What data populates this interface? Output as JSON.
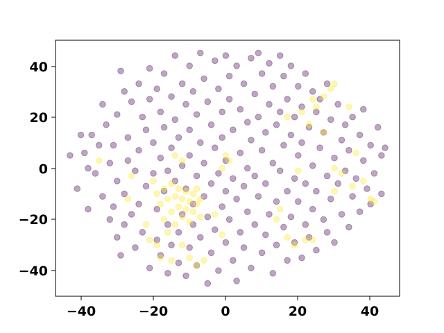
{
  "chart_data": {
    "type": "scatter",
    "title": "",
    "xlabel": "",
    "ylabel": "",
    "xlim": [
      -47,
      48
    ],
    "ylim": [
      -50,
      50
    ],
    "xticks": [
      -40,
      -20,
      0,
      20,
      40
    ],
    "yticks": [
      -40,
      -20,
      0,
      20,
      40
    ],
    "xtick_labels": [
      "−40",
      "−20",
      "0",
      "20",
      "40"
    ],
    "ytick_labels": [
      "−40",
      "−20",
      "0",
      "20",
      "40"
    ],
    "grid": false,
    "marker_alpha": 0.35,
    "series": [
      {
        "color": "#440154",
        "points": [
          [
            -43,
            5
          ],
          [
            -41,
            -8
          ],
          [
            -40,
            13
          ],
          [
            -39,
            6
          ],
          [
            -38,
            -16
          ],
          [
            -38,
            0
          ],
          [
            -37,
            13
          ],
          [
            -36,
            -2
          ],
          [
            -35,
            9
          ],
          [
            -34,
            25
          ],
          [
            -34,
            -11
          ],
          [
            -33,
            17
          ],
          [
            -32,
            -20
          ],
          [
            -32,
            2
          ],
          [
            -31,
            -15
          ],
          [
            -31,
            9
          ],
          [
            -30,
            -27
          ],
          [
            -30,
            21
          ],
          [
            -30,
            -5
          ],
          [
            -29,
            38
          ],
          [
            -29,
            -34
          ],
          [
            -28,
            30
          ],
          [
            -28,
            -22
          ],
          [
            -28,
            -10
          ],
          [
            -27,
            12
          ],
          [
            -27,
            3
          ],
          [
            -26,
            -18
          ],
          [
            -26,
            26
          ],
          [
            -25,
            -31
          ],
          [
            -25,
            -1
          ],
          [
            -24,
            33
          ],
          [
            -24,
            -14
          ],
          [
            -24,
            7
          ],
          [
            -23,
            20
          ],
          [
            -23,
            -25
          ],
          [
            -22,
            -7
          ],
          [
            -22,
            15
          ],
          [
            -21,
            39
          ],
          [
            -21,
            -39
          ],
          [
            -21,
            27
          ],
          [
            -20,
            -2
          ],
          [
            -20,
            10
          ],
          [
            -19,
            -28
          ],
          [
            -19,
            -16
          ],
          [
            -19,
            31
          ],
          [
            -18,
            4
          ],
          [
            -18,
            22
          ],
          [
            -18,
            -34
          ],
          [
            -17,
            -9
          ],
          [
            -17,
            16
          ],
          [
            -17,
            37
          ],
          [
            -16,
            -41
          ],
          [
            -16,
            -22
          ],
          [
            -16,
            -1
          ],
          [
            -15,
            28
          ],
          [
            -15,
            8
          ],
          [
            -15,
            -30
          ],
          [
            -14,
            44
          ],
          [
            -14,
            19
          ],
          [
            -14,
            -5
          ],
          [
            -13,
            -37
          ],
          [
            -13,
            12
          ],
          [
            -13,
            -25
          ],
          [
            -12,
            33
          ],
          [
            -12,
            1
          ],
          [
            -12,
            -18
          ],
          [
            -11,
            25
          ],
          [
            -11,
            -42
          ],
          [
            -11,
            -8
          ],
          [
            -10,
            40
          ],
          [
            -10,
            15
          ],
          [
            -10,
            -31
          ],
          [
            -10,
            5
          ],
          [
            -9,
            -22
          ],
          [
            -9,
            30
          ],
          [
            -9,
            -14
          ],
          [
            -8,
            21
          ],
          [
            -8,
            -3
          ],
          [
            -8,
            -38
          ],
          [
            -7,
            45
          ],
          [
            -7,
            10
          ],
          [
            -7,
            -27
          ],
          [
            -6,
            35
          ],
          [
            -6,
            -11
          ],
          [
            -6,
            2
          ],
          [
            -5,
            26
          ],
          [
            -5,
            -45
          ],
          [
            -5,
            -19
          ],
          [
            -4,
            17
          ],
          [
            -4,
            -33
          ],
          [
            -4,
            -6
          ],
          [
            -3,
            42
          ],
          [
            -3,
            8
          ],
          [
            -3,
            -24
          ],
          [
            -2,
            31
          ],
          [
            -2,
            -2
          ],
          [
            -2,
            -40
          ],
          [
            -1,
            22
          ],
          [
            -1,
            -15
          ],
          [
            -1,
            12
          ],
          [
            0,
            44
          ],
          [
            0,
            -29
          ],
          [
            0,
            -9
          ],
          [
            0,
            3
          ],
          [
            1,
            36
          ],
          [
            1,
            -20
          ],
          [
            1,
            27
          ],
          [
            2,
            -36
          ],
          [
            2,
            -4
          ],
          [
            2,
            15
          ],
          [
            3,
            40
          ],
          [
            3,
            -12
          ],
          [
            3,
            -44
          ],
          [
            4,
            23
          ],
          [
            4,
            -25
          ],
          [
            4,
            6
          ],
          [
            5,
            33
          ],
          [
            5,
            -7
          ],
          [
            5,
            -31
          ],
          [
            6,
            18
          ],
          [
            6,
            -17
          ],
          [
            6,
            0
          ],
          [
            7,
            43
          ],
          [
            7,
            -39
          ],
          [
            7,
            11
          ],
          [
            8,
            29
          ],
          [
            8,
            -22
          ],
          [
            8,
            -3
          ],
          [
            9,
            45
          ],
          [
            9,
            20
          ],
          [
            9,
            -11
          ],
          [
            10,
            -33
          ],
          [
            10,
            7
          ],
          [
            10,
            37
          ],
          [
            11,
            -26
          ],
          [
            11,
            14
          ],
          [
            11,
            -6
          ],
          [
            12,
            41
          ],
          [
            12,
            -18
          ],
          [
            12,
            25
          ],
          [
            13,
            -41
          ],
          [
            13,
            2
          ],
          [
            13,
            32
          ],
          [
            14,
            -13
          ],
          [
            14,
            17
          ],
          [
            14,
            -30
          ],
          [
            15,
            44
          ],
          [
            15,
            -1
          ],
          [
            15,
            22
          ],
          [
            16,
            -23
          ],
          [
            16,
            9
          ],
          [
            16,
            36
          ],
          [
            17,
            -36
          ],
          [
            17,
            -9
          ],
          [
            17,
            27
          ],
          [
            18,
            13
          ],
          [
            18,
            -19
          ],
          [
            18,
            40
          ],
          [
            19,
            -4
          ],
          [
            19,
            20
          ],
          [
            19,
            -29
          ],
          [
            20,
            32
          ],
          [
            20,
            5
          ],
          [
            20,
            -13
          ],
          [
            21,
            24
          ],
          [
            21,
            -35
          ],
          [
            21,
            10
          ],
          [
            22,
            -22
          ],
          [
            22,
            37
          ],
          [
            22,
            -6
          ],
          [
            23,
            16
          ],
          [
            23,
            -27
          ],
          [
            24,
            30
          ],
          [
            24,
            1
          ],
          [
            24,
            -16
          ],
          [
            25,
            22
          ],
          [
            25,
            -9
          ],
          [
            25,
            -32
          ],
          [
            26,
            8
          ],
          [
            26,
            27
          ],
          [
            27,
            -20
          ],
          [
            27,
            14
          ],
          [
            28,
            -3
          ],
          [
            28,
            33
          ],
          [
            28,
            -25
          ],
          [
            29,
            19
          ],
          [
            29,
            -12
          ],
          [
            30,
            4
          ],
          [
            30,
            -29
          ],
          [
            31,
            25
          ],
          [
            31,
            -6
          ],
          [
            32,
            11
          ],
          [
            32,
            -18
          ],
          [
            33,
            17
          ],
          [
            33,
            -1
          ],
          [
            34,
            -23
          ],
          [
            34,
            7
          ],
          [
            35,
            20
          ],
          [
            35,
            -11
          ],
          [
            36,
            -4
          ],
          [
            37,
            13
          ],
          [
            37,
            -17
          ],
          [
            38,
            3
          ],
          [
            38,
            23
          ],
          [
            39,
            -8
          ],
          [
            40,
            9
          ],
          [
            40,
            -14
          ],
          [
            41,
            -2
          ],
          [
            42,
            16
          ],
          [
            43,
            5
          ],
          [
            43,
            -10
          ],
          [
            44,
            8
          ]
        ]
      },
      {
        "color": "#fde725",
        "points": [
          [
            -19,
            -10
          ],
          [
            -18,
            -14
          ],
          [
            -17,
            -8
          ],
          [
            -17,
            -20
          ],
          [
            -16,
            -12
          ],
          [
            -15,
            -17
          ],
          [
            -15,
            -6
          ],
          [
            -14,
            -22
          ],
          [
            -14,
            -11
          ],
          [
            -13,
            -15
          ],
          [
            -13,
            -8
          ],
          [
            -12,
            -19
          ],
          [
            -12,
            -12
          ],
          [
            -11,
            -9
          ],
          [
            -11,
            -16
          ],
          [
            -10,
            -13
          ],
          [
            -10,
            -21
          ],
          [
            -9,
            -10
          ],
          [
            -9,
            -17
          ],
          [
            -8,
            -14
          ],
          [
            -8,
            -8
          ],
          [
            -7,
            -19
          ],
          [
            -7,
            -12
          ],
          [
            -16,
            -25
          ],
          [
            -20,
            -5
          ],
          [
            -21,
            -28
          ],
          [
            -19,
            -30
          ],
          [
            -12,
            -30
          ],
          [
            -10,
            -35
          ],
          [
            -18,
            -35
          ],
          [
            -22,
            -22
          ],
          [
            -35,
            3
          ],
          [
            -26,
            -3
          ],
          [
            -27,
            -12
          ],
          [
            -15,
            -36
          ],
          [
            -8,
            -38
          ],
          [
            -6,
            -36
          ],
          [
            1,
            3
          ],
          [
            -1,
            0
          ],
          [
            0,
            5
          ],
          [
            23,
            17
          ],
          [
            25,
            24
          ],
          [
            27,
            28
          ],
          [
            29,
            31
          ],
          [
            30,
            33
          ],
          [
            21,
            22
          ],
          [
            24,
            27
          ],
          [
            34,
            24
          ],
          [
            36,
            6
          ],
          [
            27,
            14
          ],
          [
            30,
            -9
          ],
          [
            40,
            -12
          ],
          [
            41,
            -13
          ],
          [
            22,
            -28
          ],
          [
            24,
            -28
          ],
          [
            -12,
            3
          ],
          [
            -14,
            5
          ],
          [
            17,
            20
          ],
          [
            20,
            -1
          ],
          [
            32,
            -2
          ],
          [
            15,
            -16
          ],
          [
            14,
            -20
          ],
          [
            17,
            -27
          ],
          [
            19,
            -30
          ],
          [
            -3,
            -18
          ],
          [
            -1,
            -26
          ],
          [
            30,
            0
          ],
          [
            35,
            -7
          ],
          [
            38,
            -5
          ]
        ]
      }
    ]
  }
}
